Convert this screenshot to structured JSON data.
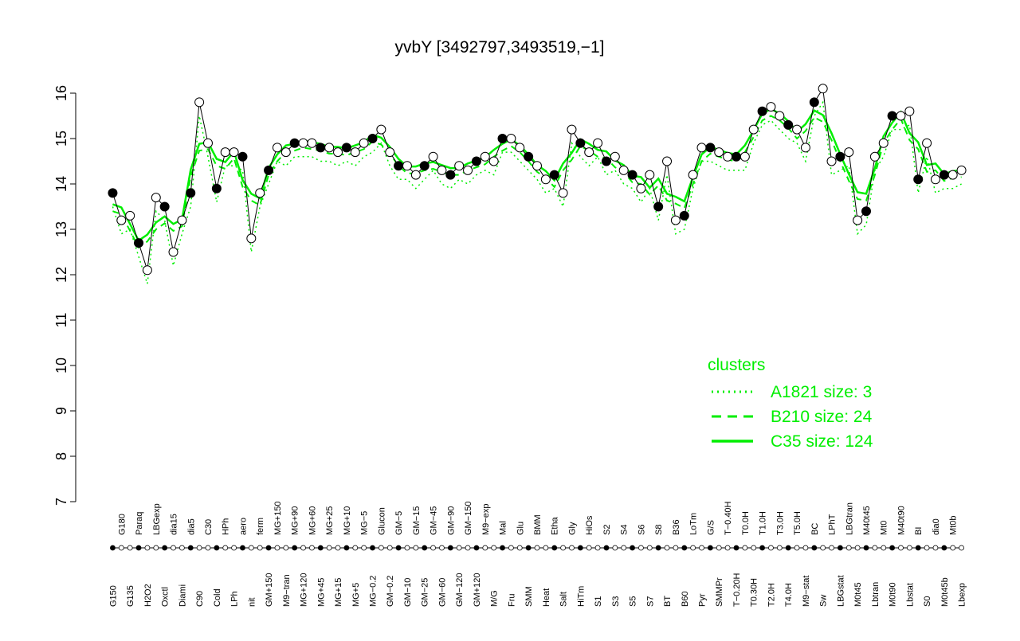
{
  "chart_data": {
    "type": "line",
    "title": "yvbY [3492797,3493519,−1]",
    "xlabel": "",
    "ylabel": "",
    "ylim": [
      7,
      16
    ],
    "yticks": [
      7,
      8,
      9,
      10,
      11,
      12,
      13,
      14,
      15,
      16
    ],
    "categories": [
      "G150",
      "G180",
      "G135",
      "Paraq",
      "H2O2",
      "LBGexp",
      "Oxctl",
      "dia15",
      "Diami",
      "dia5",
      "C90",
      "C30",
      "Cold",
      "HPh",
      "LPh",
      "aero",
      "nit",
      "ferm",
      "GM+150",
      "MG+150",
      "M9−tran",
      "MG+90",
      "MG+120",
      "MG+60",
      "MG+45",
      "MG+25",
      "MG+15",
      "MG+10",
      "MG+5",
      "MG−5",
      "MG−0.2",
      "Glucon",
      "GM−0.2",
      "GM−5",
      "GM−10",
      "GM−15",
      "GM−25",
      "GM−45",
      "GM−60",
      "GM−90",
      "GM−120",
      "GM−150",
      "GM+120",
      "M9−exp",
      "M/G",
      "Mal",
      "Fru",
      "Glu",
      "SMM",
      "BMM",
      "Heat",
      "Etha",
      "Salt",
      "Gly",
      "HiTm",
      "HiOs",
      "S1",
      "S2",
      "S3",
      "S4",
      "S5",
      "S6",
      "S7",
      "S8",
      "BT",
      "B36",
      "B60",
      "LoTm",
      "Pyr",
      "G/S",
      "SMMPr",
      "T−0.40H",
      "T−0.20H",
      "T0.0H",
      "T0.30H",
      "T1.0H",
      "T2.0H",
      "T3.0H",
      "T4.0H",
      "T5.0H",
      "M9−stat",
      "BC",
      "Sw",
      "LPhT",
      "LBGstat",
      "LBGtran",
      "M0t45",
      "M40t45",
      "Lbtran",
      "Mt0",
      "M0t90",
      "M40t90",
      "Lbstat",
      "BI",
      "S0",
      "dia0",
      "M0t45b",
      "Mt0b",
      "Lbexp"
    ],
    "series": [
      {
        "name": "probe values",
        "values": [
          13.8,
          13.2,
          13.3,
          12.7,
          12.1,
          13.7,
          13.5,
          12.5,
          13.2,
          13.8,
          15.8,
          14.9,
          13.9,
          14.7,
          14.7,
          14.6,
          12.8,
          13.8,
          14.3,
          14.8,
          14.7,
          14.9,
          14.9,
          14.9,
          14.8,
          14.8,
          14.7,
          14.8,
          14.7,
          14.9,
          15.0,
          15.2,
          14.7,
          14.4,
          14.4,
          14.2,
          14.4,
          14.6,
          14.3,
          14.2,
          14.4,
          14.3,
          14.5,
          14.6,
          14.5,
          15.0,
          15.0,
          14.8,
          14.6,
          14.4,
          14.1,
          14.2,
          13.8,
          15.2,
          14.9,
          14.7,
          14.9,
          14.5,
          14.6,
          14.3,
          14.2,
          13.9,
          14.2,
          13.5,
          14.5,
          13.2,
          13.3,
          14.2,
          14.8,
          14.8,
          14.7,
          14.6,
          14.6,
          14.6,
          15.2,
          15.6,
          15.7,
          15.5,
          15.3,
          15.2,
          14.8,
          15.8,
          16.1,
          14.5,
          14.6,
          14.7,
          13.2,
          13.4,
          14.6,
          14.9,
          15.5,
          15.5,
          15.6,
          14.1,
          14.9,
          14.1,
          14.2,
          14.2,
          14.3
        ]
      }
    ],
    "clusters_legend": {
      "title": "clusters",
      "entries": [
        {
          "label": "A1821 size: 3",
          "style": "dotted"
        },
        {
          "label": "B210 size: 24",
          "style": "dashed"
        },
        {
          "label": "C35 size: 124",
          "style": "solid"
        }
      ],
      "color": "#00ee00"
    },
    "colors": {
      "line": "#00ee00",
      "marker_stroke": "#000000",
      "axis": "#000000"
    },
    "grid": false,
    "legend_position": "bottom-right"
  }
}
